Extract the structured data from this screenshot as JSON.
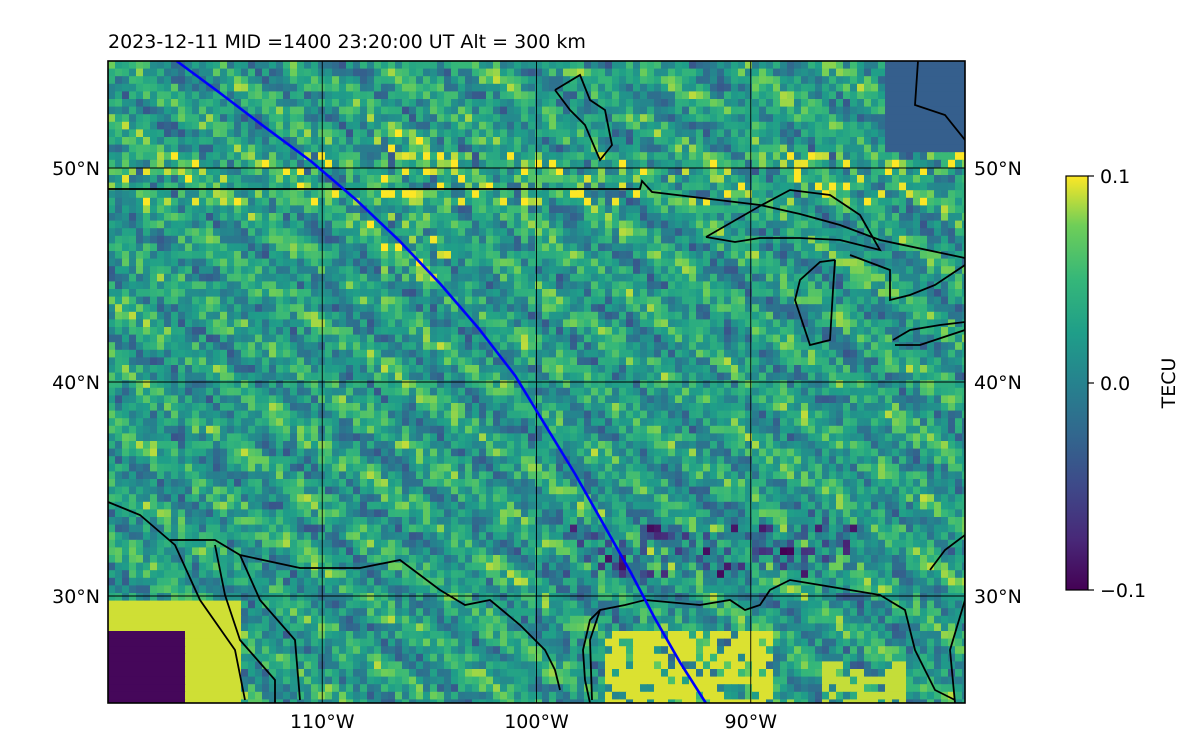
{
  "chart_data": {
    "type": "heatmap",
    "title": "2023-12-11  MID =1400    23:20:00  UT  Alt = 300 km",
    "x_ticks": [
      {
        "value": -110,
        "label": "110°W"
      },
      {
        "value": -100,
        "label": "100°W"
      },
      {
        "value": -90,
        "label": "90°W"
      }
    ],
    "y_ticks": [
      {
        "value": 30,
        "label": "30°N"
      },
      {
        "value": 40,
        "label": "40°N"
      },
      {
        "value": 50,
        "label": "50°N"
      }
    ],
    "xlim": [
      -120,
      -80
    ],
    "ylim": [
      25,
      55
    ],
    "grid": true,
    "colorbar": {
      "label": "TECU",
      "colormap": "viridis",
      "range": [
        -0.1,
        0.1
      ],
      "ticks": [
        {
          "value": 0.1,
          "label": "0.1"
        },
        {
          "value": 0.0,
          "label": "0.0"
        },
        {
          "value": -0.1,
          "label": "−0.1"
        }
      ]
    },
    "satellite_track": {
      "color": "#0000ff",
      "lon": [
        -116.8,
        -114.9,
        -112.8,
        -110.5,
        -108.4,
        -106.4,
        -104.5,
        -102.7,
        -101.0,
        -99.6,
        -98.2,
        -96.9,
        -95.6,
        -94.5,
        -93.3,
        -92.1
      ],
      "lat": [
        55.0,
        53.6,
        52.0,
        50.3,
        48.5,
        46.6,
        44.6,
        42.5,
        40.3,
        38.0,
        35.7,
        33.4,
        31.1,
        29.0,
        26.9,
        25.0
      ]
    }
  }
}
